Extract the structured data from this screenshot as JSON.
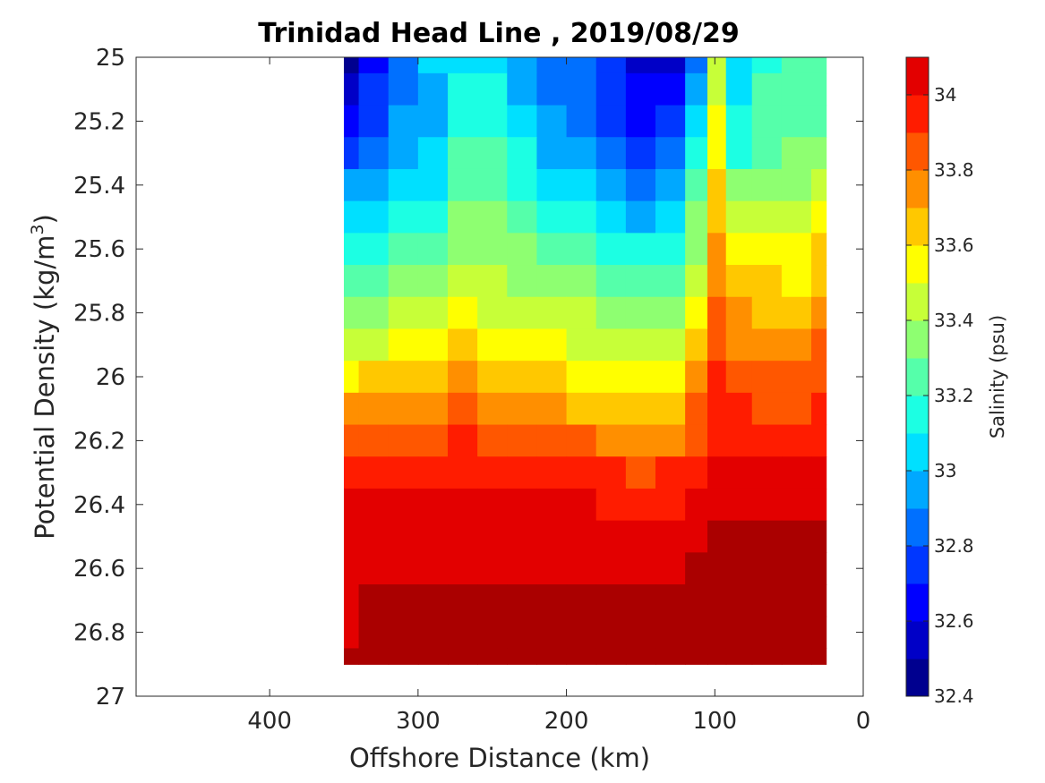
{
  "chart_data": {
    "type": "heatmap",
    "subtype": "filled-contour",
    "title": "Trinidad Head Line , 2019/08/29",
    "xlabel": "Offshore Distance (km)",
    "ylabel": "Potential Density (kg/m",
    "ylabel_sup": "3",
    "ylabel_close": ")",
    "colorbar_label": "Salinity (psu)",
    "x_reversed": true,
    "y_reversed": true,
    "xlim": [
      490,
      0
    ],
    "ylim": [
      25,
      27
    ],
    "x_ticks": [
      400,
      300,
      200,
      100,
      0
    ],
    "y_ticks": [
      25,
      25.2,
      25.4,
      25.6,
      25.8,
      26,
      26.2,
      26.4,
      26.6,
      26.8,
      27
    ],
    "y_tick_labels": [
      "25",
      "25.2",
      "25.4",
      "25.6",
      "25.8",
      "26",
      "26.2",
      "26.4",
      "26.6",
      "26.8",
      "27"
    ],
    "colorbar_range": [
      32.4,
      34.1
    ],
    "colorbar_ticks": [
      "32.4",
      "32.6",
      "32.8",
      "33",
      "33.2",
      "33.4",
      "33.6",
      "33.8",
      "34"
    ],
    "contour_levels": [
      32.4,
      32.5,
      32.6,
      32.7,
      32.8,
      32.9,
      33.0,
      33.1,
      33.2,
      33.3,
      33.4,
      33.5,
      33.6,
      33.7,
      33.8,
      33.9,
      34.0,
      34.1
    ],
    "colormap": [
      "#00008f",
      "#0000c7",
      "#0000ff",
      "#0037ff",
      "#0070ff",
      "#00a8ff",
      "#00e0ff",
      "#1cffe3",
      "#55ffaa",
      "#8eff71",
      "#c7ff38",
      "#ffff00",
      "#ffc800",
      "#ff8f00",
      "#ff5700",
      "#ff1c00",
      "#e30000",
      "#aa0000"
    ],
    "grid": false,
    "sections": [
      {
        "x": [
          350,
          330,
          310,
          290,
          270,
          250,
          230,
          210,
          190,
          170,
          150,
          130,
          110,
          100,
          85,
          65,
          45,
          25
        ],
        "density_levels": [
          25.0,
          25.1,
          25.2,
          25.3,
          25.4,
          25.5,
          25.6,
          25.7,
          25.8,
          25.9,
          26.0,
          26.1,
          26.2,
          26.3,
          26.4,
          26.5,
          26.6,
          26.7,
          26.8,
          26.9
        ],
        "salinity": [
          [
            32.45,
            32.65,
            32.85,
            33.0,
            33.05,
            33.05,
            32.95,
            32.85,
            32.8,
            32.7,
            32.55,
            32.5,
            32.8,
            33.4,
            33.0,
            33.15,
            33.2,
            33.25
          ],
          [
            32.55,
            32.72,
            32.88,
            32.98,
            33.1,
            33.1,
            32.98,
            32.88,
            32.82,
            32.72,
            32.6,
            32.6,
            32.9,
            33.45,
            33.05,
            33.2,
            33.22,
            33.25
          ],
          [
            32.6,
            32.78,
            32.9,
            32.98,
            33.15,
            33.15,
            33.02,
            32.9,
            32.85,
            32.78,
            32.68,
            32.7,
            33.0,
            33.5,
            33.1,
            33.22,
            33.25,
            33.25
          ],
          [
            32.75,
            32.85,
            32.94,
            33.0,
            33.2,
            33.2,
            33.1,
            32.98,
            32.92,
            32.88,
            32.78,
            32.82,
            33.1,
            33.55,
            33.18,
            33.28,
            33.3,
            33.35
          ],
          [
            32.9,
            32.95,
            33.0,
            33.05,
            33.25,
            33.25,
            33.15,
            33.05,
            33.0,
            32.98,
            32.88,
            32.92,
            33.2,
            33.6,
            33.3,
            33.35,
            33.35,
            33.45
          ],
          [
            33.0,
            33.05,
            33.1,
            33.15,
            33.3,
            33.3,
            33.25,
            33.15,
            33.1,
            33.05,
            32.98,
            33.0,
            33.3,
            33.65,
            33.4,
            33.42,
            33.42,
            33.55
          ],
          [
            33.1,
            33.15,
            33.2,
            33.25,
            33.35,
            33.35,
            33.3,
            33.25,
            33.2,
            33.15,
            33.1,
            33.1,
            33.35,
            33.7,
            33.5,
            33.5,
            33.5,
            33.62
          ],
          [
            33.2,
            33.25,
            33.3,
            33.32,
            33.45,
            33.4,
            33.38,
            33.32,
            33.3,
            33.25,
            33.2,
            33.2,
            33.4,
            33.75,
            33.6,
            33.6,
            33.58,
            33.68
          ],
          [
            33.35,
            33.38,
            33.4,
            33.42,
            33.52,
            33.48,
            33.45,
            33.42,
            33.4,
            33.35,
            33.3,
            33.3,
            33.5,
            33.82,
            33.7,
            33.68,
            33.65,
            33.75
          ],
          [
            33.45,
            33.48,
            33.5,
            33.52,
            33.6,
            33.55,
            33.52,
            33.5,
            33.48,
            33.45,
            33.42,
            33.42,
            33.62,
            33.88,
            33.78,
            33.75,
            33.72,
            33.82
          ],
          [
            33.58,
            33.6,
            33.62,
            33.65,
            33.7,
            33.65,
            33.62,
            33.6,
            33.58,
            33.55,
            33.55,
            33.55,
            33.72,
            33.92,
            33.85,
            33.82,
            33.8,
            33.88
          ],
          [
            33.7,
            33.72,
            33.75,
            33.78,
            33.8,
            33.75,
            33.72,
            33.7,
            33.68,
            33.66,
            33.65,
            33.66,
            33.8,
            33.95,
            33.9,
            33.88,
            33.86,
            33.92
          ],
          [
            33.82,
            33.84,
            33.86,
            33.88,
            33.9,
            33.86,
            33.84,
            33.82,
            33.8,
            33.78,
            33.76,
            33.78,
            33.88,
            33.98,
            33.96,
            33.95,
            33.94,
            33.98
          ],
          [
            33.92,
            33.94,
            33.95,
            33.96,
            33.96,
            33.95,
            33.94,
            33.93,
            33.92,
            33.9,
            33.88,
            33.9,
            33.96,
            34.02,
            34.0,
            34.0,
            34.0,
            34.02
          ],
          [
            34.0,
            34.01,
            34.02,
            34.02,
            34.02,
            34.02,
            34.02,
            34.01,
            34.0,
            33.98,
            33.97,
            33.98,
            34.02,
            34.04,
            34.04,
            34.04,
            34.04,
            34.05
          ],
          [
            34.02,
            34.03,
            34.04,
            34.05,
            34.05,
            34.06,
            34.08,
            34.05,
            34.03,
            34.02,
            34.04,
            34.02,
            34.06,
            34.1,
            34.1,
            34.1,
            34.12,
            34.1
          ],
          [
            34.04,
            34.06,
            34.08,
            34.09,
            34.08,
            34.06,
            34.05,
            34.05,
            34.06,
            34.06,
            34.05,
            34.05,
            34.12,
            34.14,
            34.14,
            34.14,
            34.14,
            34.12
          ],
          [
            34.06,
            34.1,
            34.12,
            34.13,
            34.13,
            34.12,
            34.1,
            34.1,
            34.12,
            34.12,
            34.1,
            34.1,
            34.14,
            34.16,
            34.16,
            34.16,
            34.16,
            34.14
          ],
          [
            34.08,
            34.12,
            34.14,
            34.14,
            34.14,
            34.14,
            34.14,
            34.14,
            34.15,
            34.15,
            34.14,
            34.14,
            34.18,
            34.2,
            34.2,
            34.2,
            34.22,
            34.2
          ],
          [
            34.1,
            34.12,
            34.14,
            34.14,
            34.14,
            34.14,
            34.14,
            34.14,
            34.18,
            34.18,
            34.16,
            34.16,
            34.2,
            34.2,
            34.22,
            34.22,
            34.24,
            34.2
          ]
        ]
      }
    ]
  }
}
